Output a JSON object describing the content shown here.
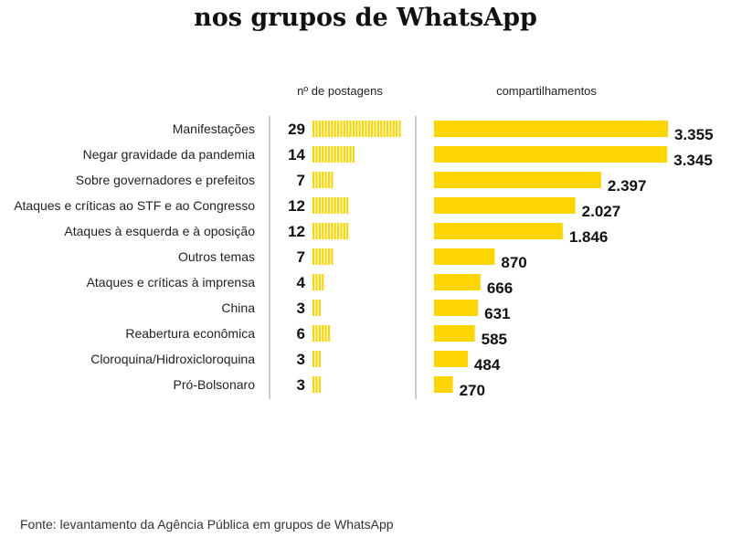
{
  "title": "nos grupos de WhatsApp",
  "source": "Fonte: levantamento da Agência Pública em grupos de WhatsApp",
  "chart_data": {
    "type": "bar",
    "categories": [
      "Manifestações",
      "Negar gravidade da pandemia",
      "Sobre governadores e prefeitos",
      "Ataques e críticas ao STF e ao Congresso",
      "Ataques à esquerda e à oposição",
      "Outros temas",
      "Ataques e críticas à imprensa",
      "China",
      "Reabertura econômica",
      "Cloroquina/Hidroxicloroquina",
      "Pró-Bolsonaro"
    ],
    "series": [
      {
        "name": "nº de postagens",
        "values": [
          29,
          14,
          7,
          12,
          12,
          7,
          4,
          3,
          6,
          3,
          3
        ],
        "labels": [
          "29",
          "14",
          "7",
          "12",
          "12",
          "7",
          "4",
          "3",
          "6",
          "3",
          "3"
        ]
      },
      {
        "name": "compartilhamentos",
        "values": [
          3355,
          3345,
          2397,
          2027,
          1846,
          870,
          666,
          631,
          585,
          484,
          270
        ],
        "labels": [
          "3.355",
          "3.345",
          "2.397",
          "2.027",
          "1.846",
          "870",
          "666",
          "631",
          "585",
          "484",
          "270"
        ]
      }
    ],
    "bar_color": "#FFD500",
    "orientation": "horizontal"
  }
}
